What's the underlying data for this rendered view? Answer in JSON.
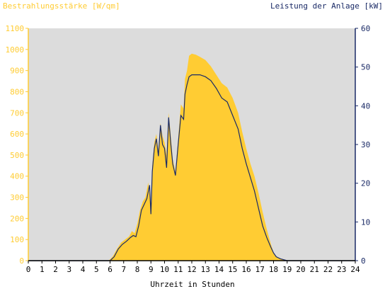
{
  "chart_data": {
    "type": "area",
    "left_axis_title": "Bestrahlungsstärke [W/qm]",
    "right_axis_title": "Leistung der Anlage [kW]",
    "xlabel": "Uhrzeit in Stunden",
    "xlim": [
      0,
      24
    ],
    "x_ticks": [
      "0",
      "1",
      "2",
      "3",
      "4",
      "5",
      "6",
      "7",
      "8",
      "9",
      "10",
      "11",
      "12",
      "13",
      "14",
      "15",
      "16",
      "17",
      "18",
      "19",
      "20",
      "21",
      "22",
      "23",
      "24"
    ],
    "left_ylim": [
      0,
      1100
    ],
    "left_ticks": [
      "0",
      "100",
      "200",
      "300",
      "400",
      "500",
      "600",
      "700",
      "800",
      "900",
      "1000",
      "1100"
    ],
    "right_ylim": [
      0,
      60
    ],
    "right_ticks": [
      "0",
      "10",
      "20",
      "30",
      "40",
      "50",
      "60"
    ],
    "grid": false,
    "colors": {
      "background": "#dcdcdc",
      "irradiance_fill": "#ffcc33",
      "left_axis": "#ffcc33",
      "power_line": "#1a2a66",
      "right_axis": "#1a2a66"
    },
    "series": [
      {
        "name": "Bestrahlungsstärke",
        "axis": "left",
        "x": [
          0,
          5.9,
          6.2,
          6.5,
          6.8,
          7.1,
          7.4,
          7.6,
          7.8,
          8.0,
          8.2,
          8.4,
          8.6,
          8.8,
          9.0,
          9.1,
          9.25,
          9.4,
          9.55,
          9.7,
          9.85,
          10.0,
          10.15,
          10.3,
          10.45,
          10.6,
          10.8,
          11.0,
          11.2,
          11.4,
          11.5,
          11.65,
          11.8,
          12.0,
          12.3,
          12.6,
          13.0,
          13.4,
          13.8,
          14.2,
          14.6,
          15.0,
          15.4,
          15.7,
          16.0,
          16.3,
          16.6,
          16.9,
          17.2,
          17.5,
          17.8,
          18.0,
          18.2,
          18.5,
          18.8,
          19.0,
          19.3,
          24
        ],
        "values": [
          0,
          0,
          20,
          55,
          85,
          100,
          115,
          140,
          130,
          175,
          240,
          280,
          300,
          370,
          260,
          450,
          560,
          600,
          520,
          650,
          590,
          560,
          500,
          700,
          600,
          480,
          420,
          580,
          740,
          720,
          860,
          900,
          970,
          980,
          975,
          965,
          950,
          920,
          880,
          840,
          820,
          770,
          700,
          610,
          530,
          460,
          400,
          320,
          230,
          150,
          80,
          40,
          20,
          10,
          5,
          0,
          0,
          0
        ]
      },
      {
        "name": "Leistung der Anlage",
        "axis": "right",
        "x": [
          0,
          6.0,
          6.3,
          6.6,
          6.9,
          7.2,
          7.5,
          7.7,
          7.9,
          8.1,
          8.3,
          8.5,
          8.7,
          8.9,
          9.0,
          9.1,
          9.25,
          9.4,
          9.55,
          9.7,
          9.85,
          10.0,
          10.15,
          10.3,
          10.45,
          10.6,
          10.8,
          11.0,
          11.2,
          11.4,
          11.5,
          11.65,
          11.8,
          12.0,
          12.3,
          12.6,
          13.0,
          13.4,
          13.8,
          14.2,
          14.6,
          15.0,
          15.4,
          15.7,
          16.0,
          16.3,
          16.6,
          16.9,
          17.2,
          17.5,
          17.8,
          18.0,
          18.2,
          18.5,
          18.8,
          19.0,
          19.3,
          24
        ],
        "values": [
          0,
          0,
          1.0,
          3.0,
          4.2,
          5.0,
          6.0,
          6.5,
          6.2,
          9.0,
          13.0,
          14.5,
          16.0,
          19.5,
          12.0,
          23.0,
          29.0,
          31.5,
          27.0,
          35.0,
          30.0,
          29.0,
          24.0,
          37.0,
          30.5,
          25.0,
          22.0,
          30.0,
          37.5,
          36.5,
          43.0,
          45.5,
          47.5,
          48.0,
          48.0,
          48.0,
          47.5,
          46.5,
          44.5,
          42.0,
          41.0,
          37.5,
          34.0,
          29.0,
          25.0,
          21.5,
          18.0,
          13.5,
          9.0,
          6.0,
          3.5,
          2.0,
          1.0,
          0.5,
          0.2,
          0,
          0,
          0
        ]
      }
    ]
  }
}
